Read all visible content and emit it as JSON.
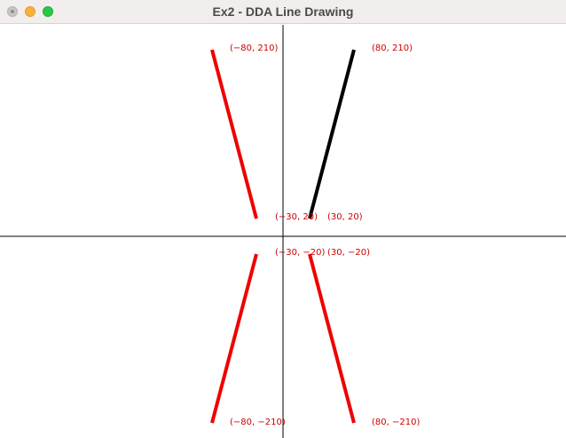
{
  "window": {
    "title": "Ex2 - DDA Line Drawing"
  },
  "colors": {
    "line_default": "#ee0000",
    "line_highlight": "#000000",
    "label": "#cc0000",
    "axis": "#000000"
  },
  "labels": {
    "q2_top": "(−80, 210)",
    "q1_top": "(80, 210)",
    "q2_bottom": "(−30, 20)",
    "q1_bottom": "(30, 20)",
    "q3_top": "(−30, −20)",
    "q4_top": "(30, −20)",
    "q3_bottom": "(−80, −210)",
    "q4_bottom": "(80, −210)"
  },
  "lines": [
    {
      "from": [
        -80,
        210
      ],
      "to": [
        -30,
        20
      ],
      "color": "red"
    },
    {
      "from": [
        80,
        210
      ],
      "to": [
        30,
        20
      ],
      "color": "black"
    },
    {
      "from": [
        -30,
        -20
      ],
      "to": [
        -80,
        -210
      ],
      "color": "red"
    },
    {
      "from": [
        30,
        -20
      ],
      "to": [
        80,
        -210
      ],
      "color": "red"
    }
  ]
}
